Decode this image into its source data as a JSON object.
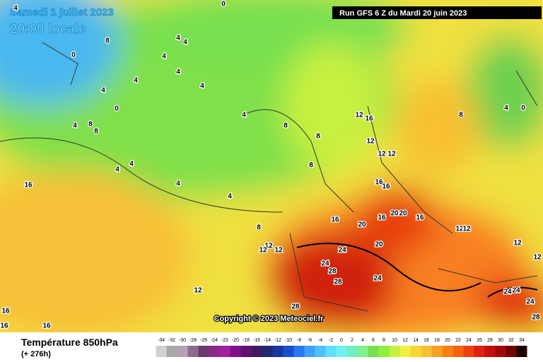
{
  "header": {
    "date": "Samedi 1 juillet 2023",
    "time": "20:00 locale",
    "run": "Run GFS 6 Z du Mardi 20 juin 2023"
  },
  "copyright": "Copyright © 2023 Meteociel.fr",
  "footer": {
    "title": "Température 850hPa",
    "subtitle": "(+ 276h)"
  },
  "legend": {
    "labels": [
      "-34",
      "-32",
      "-30",
      "-28",
      "-26",
      "-24",
      "-22",
      "-20",
      "-18",
      "-16",
      "-14",
      "-12",
      "-10",
      "-8",
      "-6",
      "-4",
      "-2",
      "0",
      "2",
      "4",
      "6",
      "8",
      "10",
      "12",
      "14",
      "16",
      "18",
      "20",
      "22",
      "24",
      "26",
      "28",
      "30",
      "32",
      "34"
    ],
    "colors": [
      "#d0d0d0",
      "#a8a8a8",
      "#b8a0b8",
      "#8c6c8c",
      "#6a3a6a",
      "#8a2a8a",
      "#a020a0",
      "#80108a",
      "#601070",
      "#401860",
      "#202870",
      "#1838a0",
      "#1850d0",
      "#2878f0",
      "#40a0ff",
      "#50c0ff",
      "#60e0ff",
      "#70f0f0",
      "#70f0c0",
      "#80f090",
      "#78e050",
      "#90f040",
      "#c8f040",
      "#f0f040",
      "#f8d830",
      "#f8c030",
      "#f8a020",
      "#f88010",
      "#f86010",
      "#f04010",
      "#e02010",
      "#c01010",
      "#a00808",
      "#700404",
      "#200000"
    ]
  },
  "map": {
    "labels": [
      "0",
      "0",
      "0",
      "0",
      "4",
      "4",
      "4",
      "4",
      "4",
      "4",
      "4",
      "4",
      "4",
      "4",
      "4",
      "4",
      "4",
      "4",
      "4",
      "8",
      "8",
      "8",
      "8",
      "8",
      "8",
      "8",
      "8",
      "12",
      "12",
      "12",
      "12",
      "12",
      "12",
      "12",
      "12",
      "12",
      "12",
      "12",
      "12",
      "16",
      "16",
      "16",
      "16",
      "16",
      "16",
      "16",
      "16",
      "16",
      "16",
      "20",
      "20",
      "20",
      "20",
      "24",
      "24",
      "24",
      "24",
      "24",
      "24",
      "28",
      "28",
      "28",
      "28"
    ]
  }
}
